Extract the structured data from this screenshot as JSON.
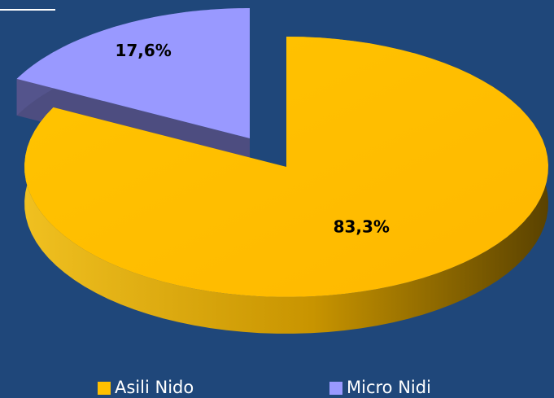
{
  "chart_data": {
    "type": "pie",
    "categories": [
      "Asili Nido",
      "Micro Nidi"
    ],
    "values": [
      83.3,
      17.6
    ],
    "value_labels": [
      "83,3%",
      "17,6%"
    ],
    "colors": [
      "#ffc000",
      "#9999ff"
    ],
    "legend": "bottom"
  }
}
